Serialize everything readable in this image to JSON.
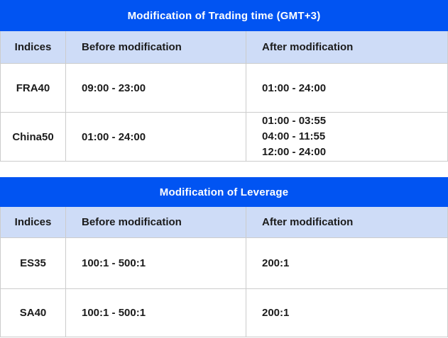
{
  "colors": {
    "title_bar_bg": "#0154f2",
    "title_text": "#ffffff",
    "header_bg": "#cedcf7",
    "border": "#cccccc",
    "body_text": "#1b1b1b"
  },
  "tables": [
    {
      "title": "Modification of Trading time (GMT+3)",
      "headers": [
        "Indices",
        "Before modification",
        "After modification"
      ],
      "rows": [
        {
          "index": "FRA40",
          "before": "09:00 - 23:00",
          "after": [
            "01:00 - 24:00"
          ]
        },
        {
          "index": "China50",
          "before": "01:00 - 24:00",
          "after": [
            "01:00 - 03:55",
            "04:00 - 11:55",
            "12:00 - 24:00"
          ]
        }
      ]
    },
    {
      "title": "Modification of Leverage",
      "headers": [
        "Indices",
        "Before modification",
        "After modification"
      ],
      "rows": [
        {
          "index": "ES35",
          "before": "100:1 - 500:1",
          "after": [
            "200:1"
          ]
        },
        {
          "index": "SA40",
          "before": "100:1 - 500:1",
          "after": [
            "200:1"
          ]
        }
      ]
    }
  ]
}
